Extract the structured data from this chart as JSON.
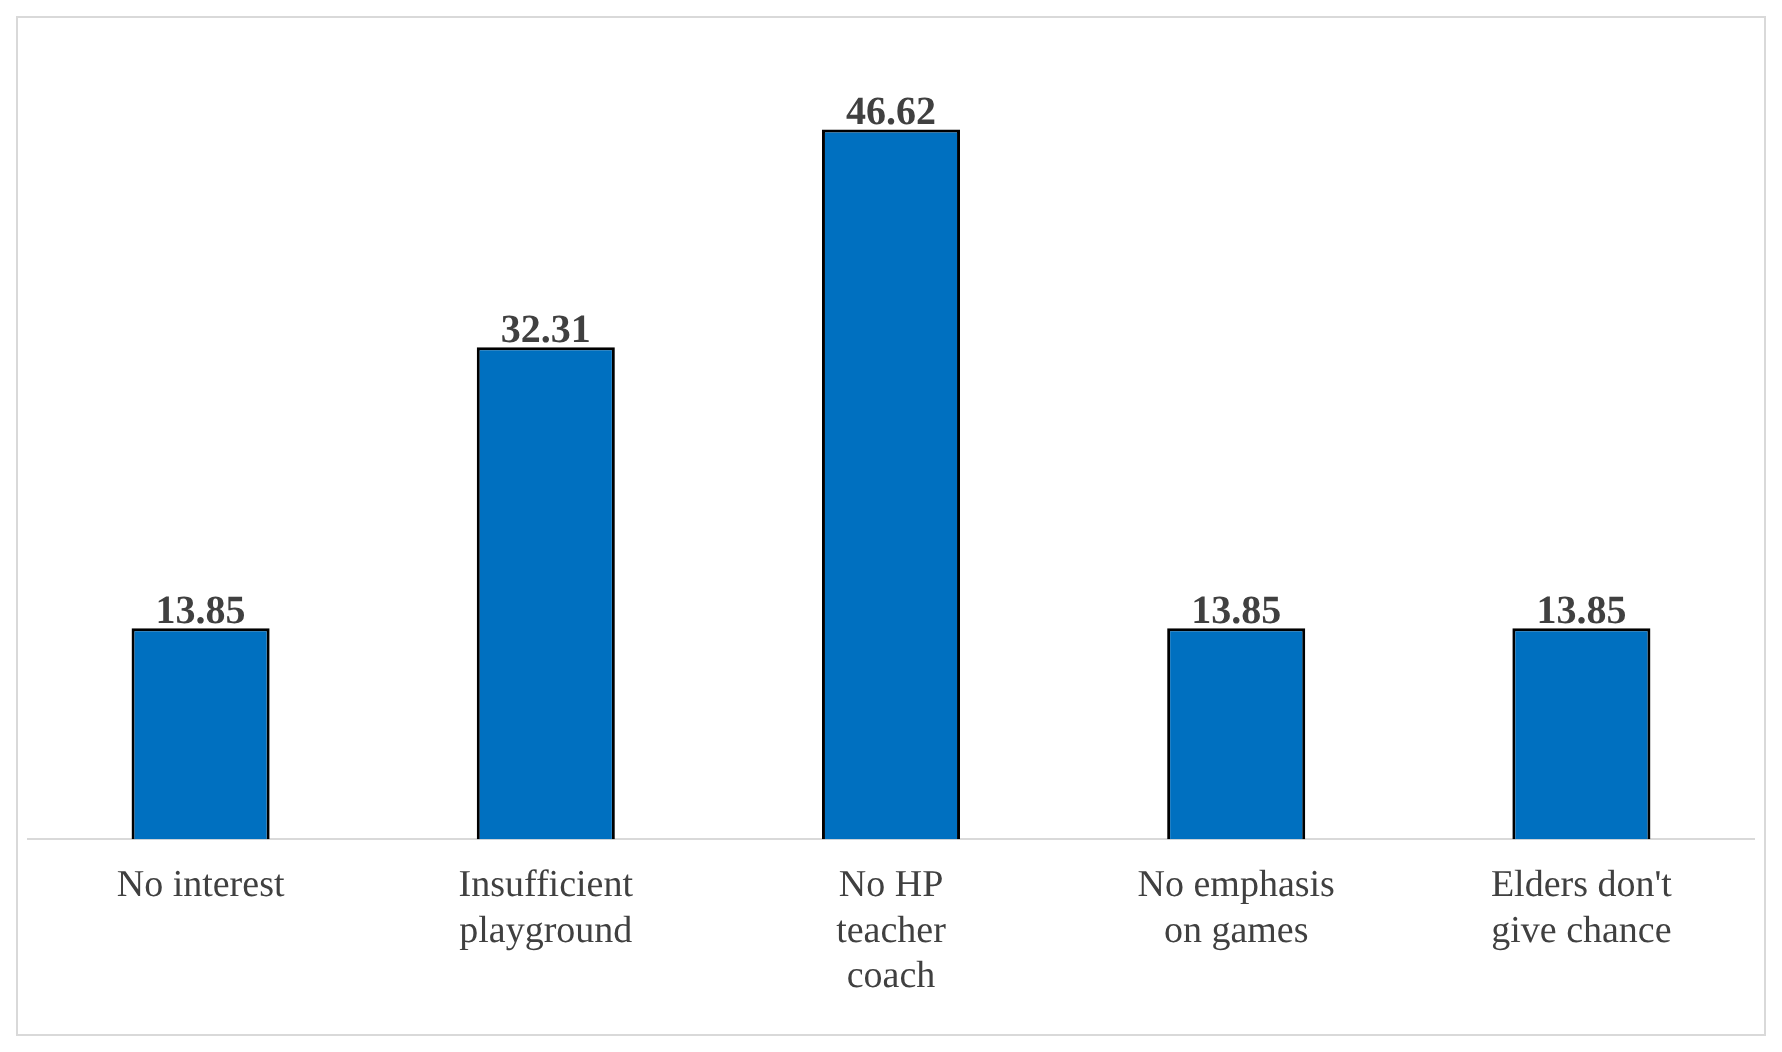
{
  "chart_data": {
    "type": "bar",
    "categories": [
      "No interest",
      "Insufficient playground",
      "No HP teacher coach",
      "No emphasis on games",
      "Elders don't give chance"
    ],
    "values": [
      13.85,
      32.31,
      46.62,
      13.85,
      13.85
    ],
    "color": "#0070c0",
    "data_labels": true,
    "grid": false,
    "legend": false
  }
}
